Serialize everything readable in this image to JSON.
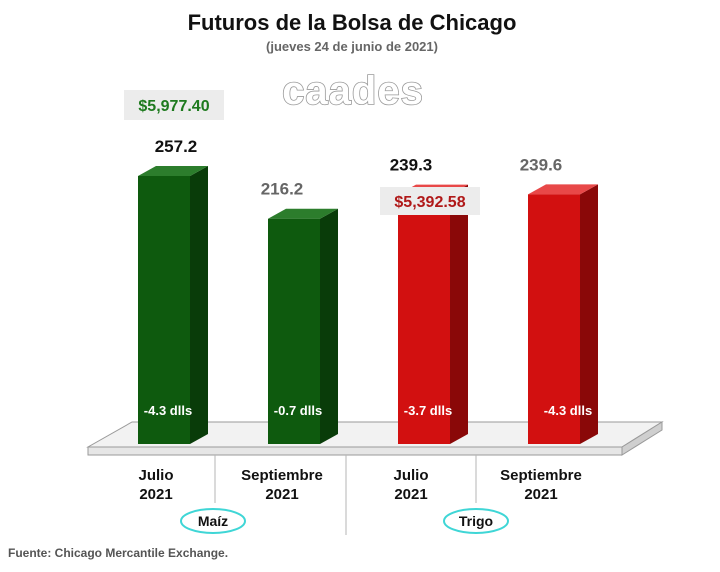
{
  "chart_data": {
    "type": "bar",
    "title": "Futuros de la Bolsa de Chicago",
    "subtitle": "(jueves 24 de junio de 2021)",
    "watermark": "caades",
    "source": "Fuente: Chicago Mercantile Exchange.",
    "ylim": [
      0,
      280
    ],
    "grid": false,
    "groups": [
      {
        "name": "Maíz",
        "highlight": "$5,977.40",
        "highlight_color": "#1e7a1e",
        "bars": [
          {
            "month": "Julio",
            "year": "2021",
            "value": 257.2,
            "value_label": "257.2",
            "change": "-4.3 dlls"
          },
          {
            "month": "Septiembre",
            "year": "2021",
            "value": 216.2,
            "value_label": "216.2",
            "change": "-0.7 dlls"
          }
        ]
      },
      {
        "name": "Trigo",
        "highlight": "$5,392.58",
        "highlight_color": "#b01818",
        "bars": [
          {
            "month": "Julio",
            "year": "2021",
            "value": 239.3,
            "value_label": "239.3",
            "change": "-3.7 dlls"
          },
          {
            "month": "Septiembre",
            "year": "2021",
            "value": 239.6,
            "value_label": "239.6",
            "change": "-4.3 dlls"
          }
        ]
      }
    ],
    "colors": {
      "maiz_front": "#0e5a0e",
      "maiz_side": "#093c09",
      "maiz_top": "#2c7d2c",
      "trigo_front": "#d21010",
      "trigo_side": "#8a0808",
      "trigo_top": "#e84848",
      "value_dark": "#111111",
      "value_grey": "#666666",
      "group_oval_border": "#3fd6d6"
    }
  }
}
